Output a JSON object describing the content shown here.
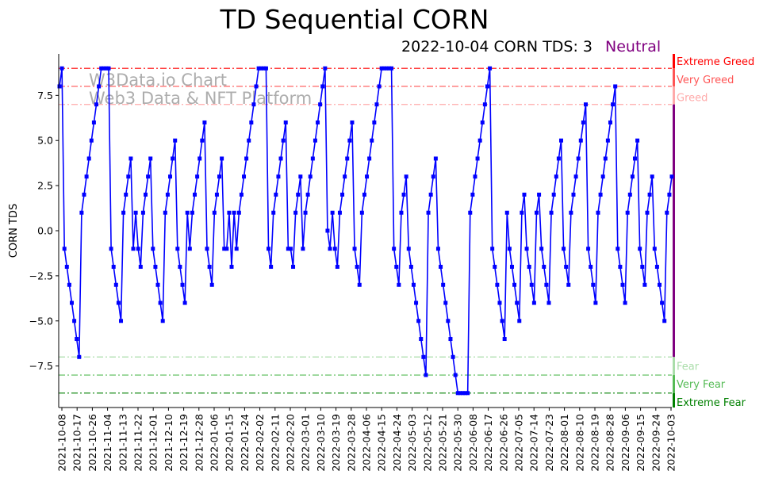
{
  "chart_data": {
    "type": "line",
    "title": "TD Sequential CORN",
    "subtitle": "2022-10-04 CORN TDS: 3",
    "status_label": "Neutral",
    "ylabel": "CORN TDS",
    "ylim": [
      -9.8,
      9.8
    ],
    "yticks": [
      {
        "value": 7.5,
        "label": "7.5"
      },
      {
        "value": 5.0,
        "label": "5.0"
      },
      {
        "value": 2.5,
        "label": "2.5"
      },
      {
        "value": 0.0,
        "label": "0.0"
      },
      {
        "value": -2.5,
        "label": "−2.5"
      },
      {
        "value": -5.0,
        "label": "−5.0"
      },
      {
        "value": -7.5,
        "label": "−7.5"
      }
    ],
    "xticks": [
      "2021-10-08",
      "2021-10-17",
      "2021-10-26",
      "2021-11-04",
      "2021-11-13",
      "2021-11-22",
      "2021-12-01",
      "2021-12-10",
      "2021-12-19",
      "2021-12-28",
      "2022-01-06",
      "2022-01-15",
      "2022-01-24",
      "2022-02-02",
      "2022-02-11",
      "2022-02-20",
      "2022-03-01",
      "2022-03-10",
      "2022-03-19",
      "2022-03-28",
      "2022-04-06",
      "2022-04-15",
      "2022-04-24",
      "2022-05-03",
      "2022-05-12",
      "2022-05-21",
      "2022-05-30",
      "2022-06-08",
      "2022-06-17",
      "2022-06-26",
      "2022-07-05",
      "2022-07-14",
      "2022-07-23",
      "2022-08-01",
      "2022-08-10",
      "2022-08-19",
      "2022-08-28",
      "2022-09-06",
      "2022-09-15",
      "2022-09-24",
      "2022-10-03"
    ],
    "watermark": [
      "W3Data.io Chart",
      "Web3 Data & NFT Platform"
    ],
    "levels": [
      {
        "value": 9,
        "label": "Extreme Greed",
        "color": "#ff0000"
      },
      {
        "value": 8,
        "label": "Very Greed",
        "color": "#ff5555"
      },
      {
        "value": 7,
        "label": "Greed",
        "color": "#ffaaaa"
      },
      {
        "value": -7,
        "label": "Fear",
        "color": "#aaddaa"
      },
      {
        "value": -8,
        "label": "Very Fear",
        "color": "#55bb55"
      },
      {
        "value": -9,
        "label": "Extreme Fear",
        "color": "#008000"
      }
    ],
    "series": [
      {
        "color": "#0000ff",
        "values": [
          8,
          9,
          -1,
          -2,
          -3,
          -4,
          -5,
          -6,
          -7,
          1,
          2,
          3,
          4,
          5,
          6,
          7,
          8,
          9,
          9,
          9,
          9,
          -1,
          -2,
          -3,
          -4,
          -5,
          1,
          2,
          3,
          4,
          -1,
          1,
          -1,
          -2,
          1,
          2,
          3,
          4,
          -1,
          -2,
          -3,
          -4,
          -5,
          1,
          2,
          3,
          4,
          5,
          -1,
          -2,
          -3,
          -4,
          1,
          -1,
          1,
          2,
          3,
          4,
          5,
          6,
          -1,
          -2,
          -3,
          1,
          2,
          3,
          4,
          -1,
          -1,
          1,
          -2,
          1,
          -1,
          1,
          2,
          3,
          4,
          5,
          6,
          7,
          8,
          9,
          9,
          9,
          9,
          -1,
          -2,
          1,
          2,
          3,
          4,
          5,
          6,
          -1,
          -1,
          -2,
          1,
          2,
          3,
          -1,
          1,
          2,
          3,
          4,
          5,
          6,
          7,
          8,
          9,
          0,
          -1,
          1,
          -1,
          -2,
          1,
          2,
          3,
          4,
          5,
          6,
          -1,
          -2,
          -3,
          1,
          2,
          3,
          4,
          5,
          6,
          7,
          8,
          9,
          9,
          9,
          9,
          9,
          -1,
          -2,
          -3,
          1,
          2,
          3,
          -1,
          -2,
          -3,
          -4,
          -5,
          -6,
          -7,
          -8,
          1,
          2,
          3,
          4,
          -1,
          -2,
          -3,
          -4,
          -5,
          -6,
          -7,
          -8,
          -9,
          -9,
          -9,
          -9,
          -9,
          1,
          2,
          3,
          4,
          5,
          6,
          7,
          8,
          9,
          -1,
          -2,
          -3,
          -4,
          -5,
          -6,
          1,
          -1,
          -2,
          -3,
          -4,
          -5,
          1,
          2,
          -1,
          -2,
          -3,
          -4,
          1,
          2,
          -1,
          -2,
          -3,
          -4,
          1,
          2,
          3,
          4,
          5,
          -1,
          -2,
          -3,
          1,
          2,
          3,
          4,
          5,
          6,
          7,
          -1,
          -2,
          -3,
          -4,
          1,
          2,
          3,
          4,
          5,
          6,
          7,
          8,
          -1,
          -2,
          -3,
          -4,
          1,
          2,
          3,
          4,
          5,
          -1,
          -2,
          -3,
          1,
          2,
          3,
          -1,
          -2,
          -3,
          -4,
          -5,
          1,
          2,
          3
        ]
      }
    ],
    "grid": false
  }
}
